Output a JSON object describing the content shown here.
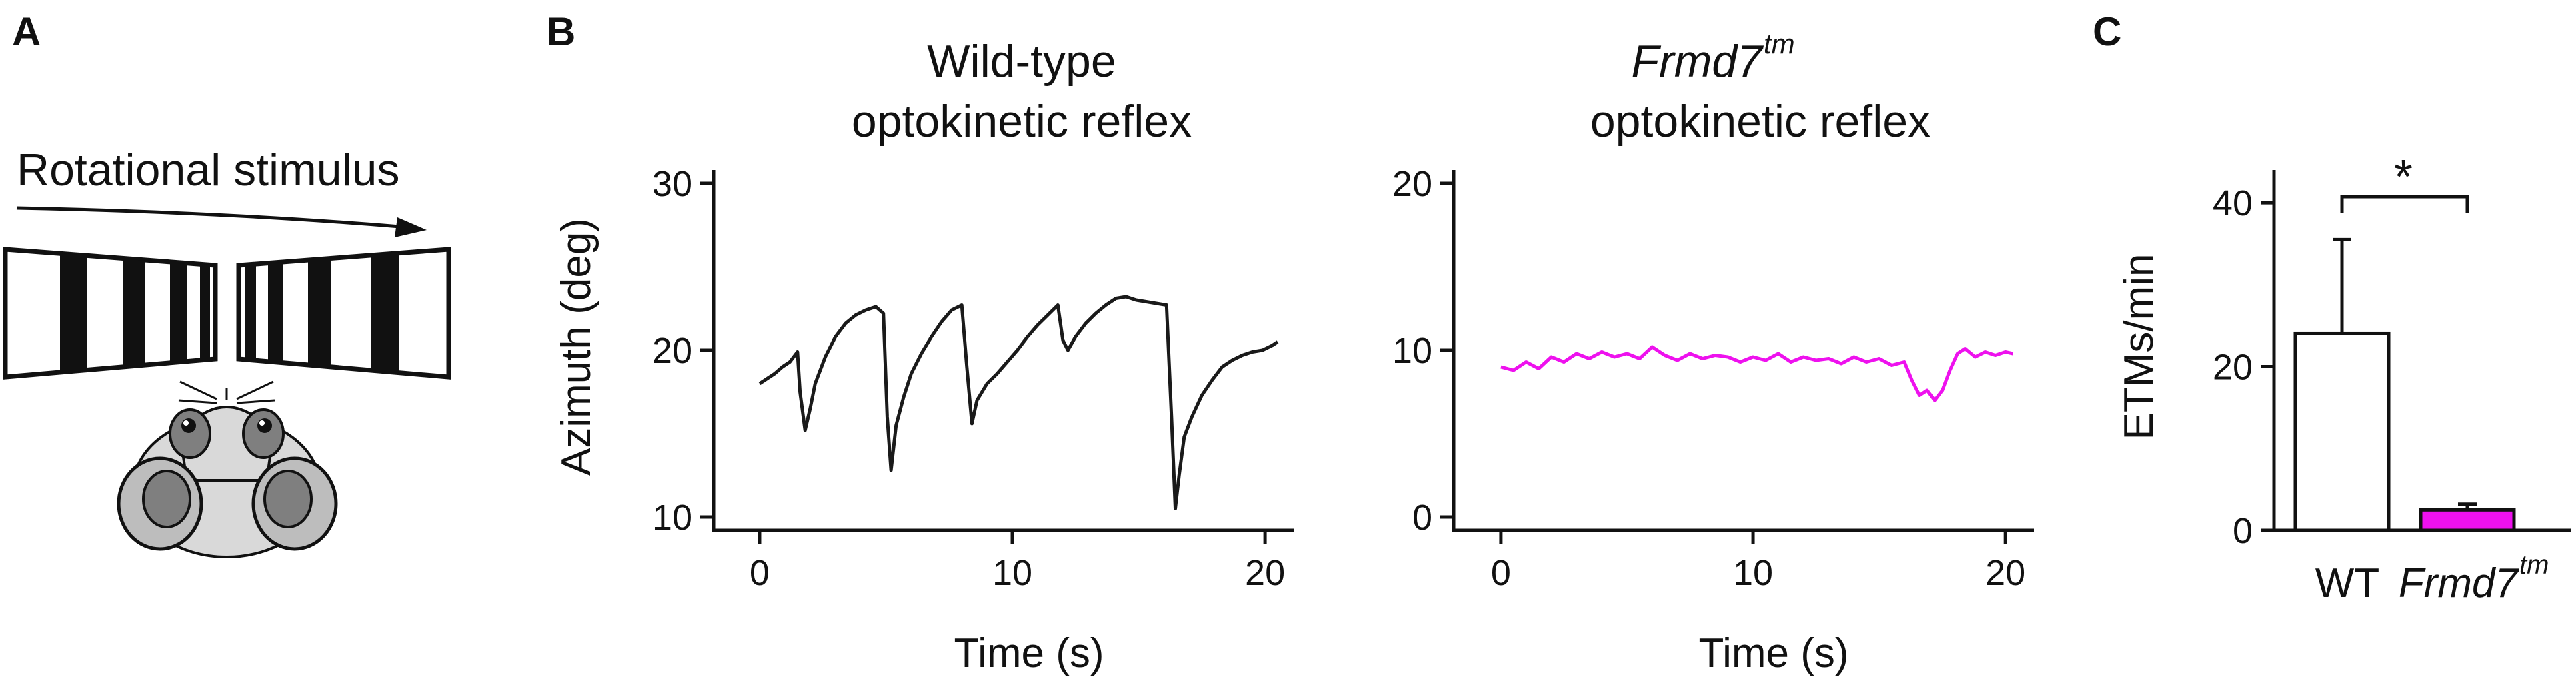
{
  "panels": {
    "A": {
      "letter": "A",
      "stimulus_label": "Rotational stimulus"
    },
    "B": {
      "letter": "B"
    },
    "C": {
      "letter": "C"
    }
  },
  "colors": {
    "wildtype_trace": "#1a1a1a",
    "frmd7_trace": "#ee11ee",
    "frmd7_bar": "#ee11ee",
    "wt_bar": "#ffffff",
    "stripes": "#111111",
    "mouse_body": "#d9d9d9",
    "mouse_ear": "#7f7f7f"
  },
  "chart_data": [
    {
      "type": "line",
      "title_line1": "Wild-type",
      "title_line2": "optokinetic reflex",
      "xlabel": "Time (s)",
      "ylabel": "Azimuth (deg)",
      "xlim": [
        -0.5,
        21
      ],
      "ylim": [
        9,
        31
      ],
      "xticks": [
        0,
        10,
        20
      ],
      "yticks": [
        10,
        20,
        30
      ],
      "color": "#1a1a1a",
      "x": [
        0,
        0.3,
        0.6,
        0.9,
        1.2,
        1.5,
        1.6,
        1.8,
        2.0,
        2.2,
        2.6,
        3.0,
        3.4,
        3.8,
        4.2,
        4.6,
        4.9,
        5.05,
        5.2,
        5.4,
        5.7,
        6.0,
        6.4,
        6.8,
        7.2,
        7.6,
        8.0,
        8.2,
        8.4,
        8.6,
        9.0,
        9.4,
        9.8,
        10.2,
        10.6,
        11.0,
        11.4,
        11.8,
        12.0,
        12.2,
        12.5,
        12.9,
        13.3,
        13.7,
        14.1,
        14.5,
        14.9,
        15.3,
        15.7,
        16.1,
        16.3,
        16.45,
        16.6,
        16.8,
        17.1,
        17.5,
        17.9,
        18.3,
        18.7,
        19.1,
        19.5,
        19.9,
        20.3,
        20.5
      ],
      "y": [
        18,
        18.3,
        18.6,
        19.0,
        19.3,
        19.9,
        17.5,
        15.2,
        16.5,
        18.0,
        19.6,
        20.8,
        21.6,
        22.1,
        22.4,
        22.6,
        22.2,
        16.0,
        12.8,
        15.5,
        17.2,
        18.6,
        19.8,
        20.8,
        21.7,
        22.4,
        22.7,
        19.0,
        15.6,
        17.0,
        18.0,
        18.6,
        19.3,
        20.0,
        20.8,
        21.5,
        22.1,
        22.7,
        20.6,
        20.0,
        20.8,
        21.6,
        22.2,
        22.7,
        23.1,
        23.2,
        23.0,
        22.9,
        22.8,
        22.7,
        16.0,
        10.5,
        12.5,
        14.8,
        16.0,
        17.3,
        18.2,
        19.0,
        19.4,
        19.7,
        19.9,
        20.0,
        20.3,
        20.5
      ]
    },
    {
      "type": "line",
      "title_line1": "Frmd7",
      "title_line1_sup": "tm",
      "title_line2": "optokinetic reflex",
      "xlabel": "Time (s)",
      "ylabel": "",
      "xlim": [
        -0.5,
        21
      ],
      "ylim": [
        -1,
        21
      ],
      "xticks": [
        0,
        10,
        20
      ],
      "yticks": [
        0,
        10,
        20
      ],
      "color": "#ee11ee",
      "x": [
        0,
        0.5,
        1.0,
        1.5,
        2.0,
        2.5,
        3.0,
        3.5,
        4.0,
        4.5,
        5.0,
        5.5,
        6.0,
        6.5,
        7.0,
        7.5,
        8.0,
        8.5,
        9.0,
        9.5,
        10.0,
        10.5,
        11.0,
        11.5,
        12.0,
        12.5,
        13.0,
        13.5,
        14.0,
        14.5,
        15.0,
        15.5,
        16.0,
        16.3,
        16.6,
        16.9,
        17.2,
        17.5,
        17.8,
        18.1,
        18.4,
        18.8,
        19.2,
        19.6,
        20.0,
        20.3
      ],
      "y": [
        9.0,
        8.8,
        9.3,
        8.9,
        9.6,
        9.3,
        9.8,
        9.5,
        9.9,
        9.6,
        9.8,
        9.5,
        10.2,
        9.7,
        9.4,
        9.8,
        9.5,
        9.7,
        9.6,
        9.3,
        9.6,
        9.4,
        9.8,
        9.3,
        9.6,
        9.4,
        9.5,
        9.2,
        9.6,
        9.3,
        9.5,
        9.1,
        9.3,
        8.2,
        7.3,
        7.6,
        7.0,
        7.6,
        8.8,
        9.8,
        10.1,
        9.6,
        9.9,
        9.7,
        9.9,
        9.8
      ]
    },
    {
      "type": "bar",
      "categories": [
        "WT",
        "Frmd7"
      ],
      "category_sup": [
        "",
        "tm"
      ],
      "values": [
        24,
        2.5
      ],
      "errors": [
        11.5,
        0.7
      ],
      "ylabel": "ETMs/min",
      "ylim": [
        0,
        44
      ],
      "yticks": [
        0,
        20,
        40
      ],
      "bar_colors": [
        "#ffffff",
        "#ee11ee"
      ],
      "significance_label": "*"
    }
  ]
}
